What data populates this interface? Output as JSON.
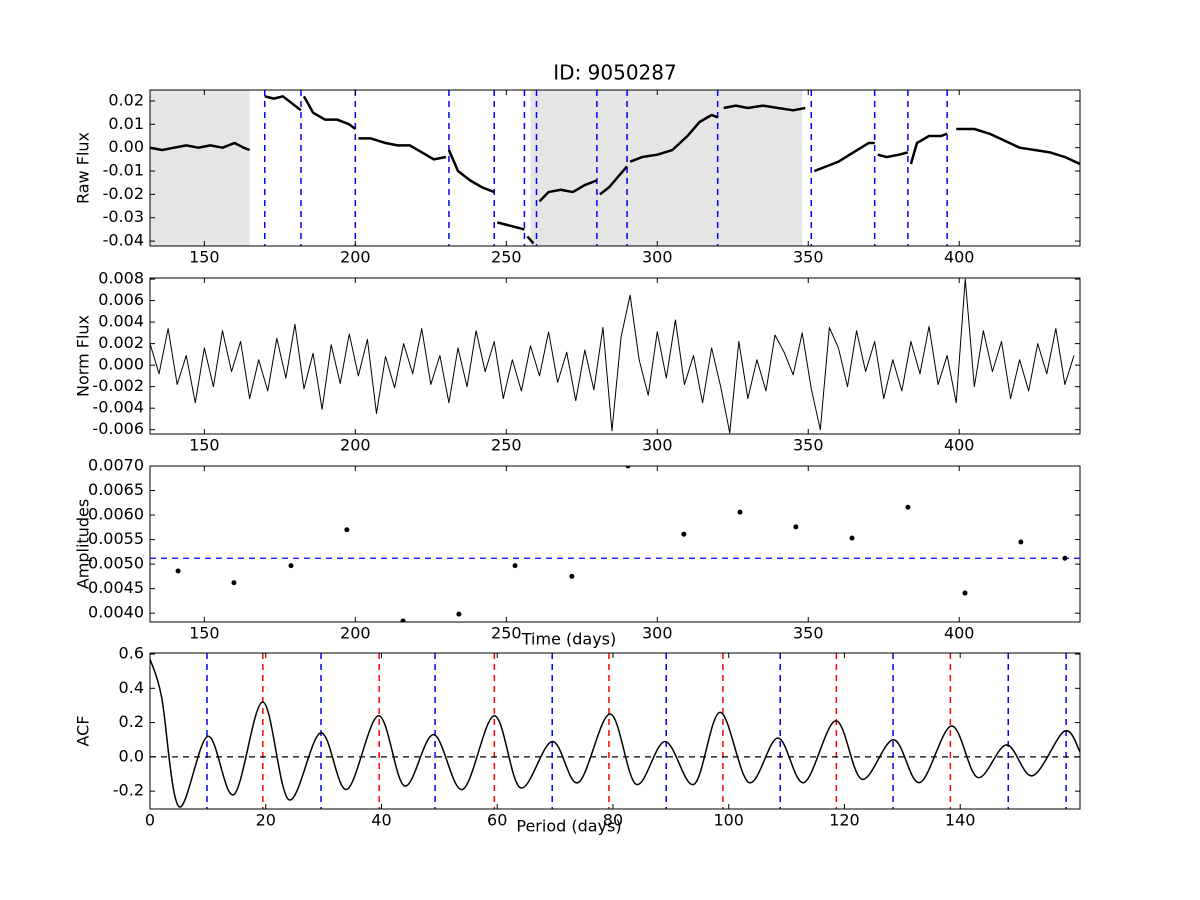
{
  "chart_data": [
    {
      "type": "line",
      "title": "ID: 9050287",
      "ylabel": "Raw Flux",
      "xlim": [
        132,
        440
      ],
      "ylim": [
        -0.0421,
        0.0247
      ],
      "xticks": [
        150,
        200,
        250,
        300,
        350,
        400
      ],
      "yticks": [
        -0.04,
        -0.03,
        -0.02,
        -0.01,
        {
          "value": 0,
          "label": "0.00"
        },
        0.01,
        0.02
      ],
      "shaded": {
        "color": "#e5e5e5",
        "ranges": [
          [
            132,
            165
          ],
          [
            258,
            348
          ]
        ]
      },
      "vlines": [
        {
          "color": "#0000ff",
          "x": [
            170,
            182,
            200,
            231,
            246,
            256,
            260,
            280,
            290,
            320,
            351,
            372,
            383,
            396
          ]
        }
      ],
      "line_width": 2.5,
      "series": [
        {
          "color": "#000000",
          "x": [
            132,
            136,
            140,
            144,
            148,
            152,
            156,
            160,
            163,
            165,
            null,
            170,
            173,
            176,
            179,
            182,
            null,
            183,
            186,
            190,
            194,
            198,
            200,
            null,
            201,
            205,
            210,
            214,
            218,
            222,
            226,
            230,
            null,
            231,
            234,
            238,
            242,
            246,
            null,
            247,
            250,
            253,
            256,
            null,
            257,
            259,
            null,
            261,
            264,
            268,
            272,
            276,
            280,
            null,
            281,
            284,
            288,
            290,
            null,
            291,
            295,
            300,
            305,
            310,
            314,
            318,
            320,
            null,
            322,
            326,
            330,
            335,
            340,
            345,
            349,
            null,
            352,
            356,
            360,
            365,
            370,
            372,
            null,
            373,
            376,
            380,
            383,
            null,
            384,
            386,
            390,
            394,
            396,
            null,
            399,
            405,
            410,
            415,
            420,
            425,
            430,
            435,
            440
          ],
          "values": [
            0.0,
            -0.001,
            0.0,
            0.001,
            0.0,
            0.001,
            0.0,
            0.002,
            0.0,
            -0.001,
            null,
            0.022,
            0.021,
            0.022,
            0.019,
            0.016,
            null,
            0.022,
            0.015,
            0.012,
            0.012,
            0.01,
            0.008,
            null,
            0.004,
            0.004,
            0.002,
            0.001,
            0.001,
            -0.002,
            -0.005,
            -0.004,
            null,
            -0.001,
            -0.01,
            -0.014,
            -0.017,
            -0.019,
            null,
            -0.032,
            -0.033,
            -0.034,
            -0.035,
            null,
            -0.038,
            -0.041,
            null,
            -0.023,
            -0.019,
            -0.018,
            -0.019,
            -0.016,
            -0.014,
            null,
            -0.02,
            -0.017,
            -0.011,
            -0.008,
            null,
            -0.006,
            -0.004,
            -0.003,
            -0.001,
            0.005,
            0.011,
            0.014,
            0.013,
            null,
            0.017,
            0.018,
            0.017,
            0.018,
            0.017,
            0.016,
            0.017,
            null,
            -0.01,
            -0.008,
            -0.006,
            -0.002,
            0.002,
            0.002,
            null,
            -0.003,
            -0.004,
            -0.003,
            -0.002,
            null,
            -0.007,
            0.002,
            0.005,
            0.005,
            0.006,
            null,
            0.008,
            0.008,
            0.006,
            0.003,
            0.0,
            -0.001,
            -0.002,
            -0.004,
            -0.007
          ]
        }
      ]
    },
    {
      "type": "line",
      "ylabel": "Norm Flux",
      "xlim": [
        132,
        440
      ],
      "ylim": [
        -0.0064,
        0.0081
      ],
      "xticks": [
        150,
        200,
        250,
        300,
        350,
        400
      ],
      "yticks": [
        -0.006,
        -0.004,
        -0.002,
        {
          "value": 0,
          "label": "0.000"
        },
        0.002,
        0.004,
        0.006,
        0.008
      ],
      "line_width": 1,
      "series": [
        {
          "color": "#000000",
          "x": [
            132,
            135,
            138,
            141,
            144,
            147,
            150,
            153,
            156,
            159,
            162,
            165,
            168,
            171,
            174,
            177,
            180,
            183,
            186,
            189,
            192,
            195,
            198,
            201,
            204,
            207,
            210,
            213,
            216,
            219,
            222,
            225,
            228,
            231,
            234,
            237,
            240,
            243,
            246,
            249,
            252,
            255,
            258,
            261,
            264,
            267,
            270,
            273,
            276,
            279,
            282,
            285,
            288,
            291,
            294,
            297,
            300,
            303,
            306,
            309,
            312,
            315,
            318,
            321,
            324,
            327,
            330,
            333,
            336,
            339,
            342,
            345,
            348,
            351,
            354,
            357,
            360,
            363,
            366,
            369,
            372,
            375,
            378,
            381,
            384,
            387,
            390,
            393,
            396,
            399,
            402,
            405,
            408,
            411,
            414,
            417,
            420,
            423,
            426,
            429,
            432,
            435,
            438
          ],
          "values": [
            0.002,
            -0.0008,
            0.0034,
            -0.0018,
            0.0009,
            -0.0035,
            0.0016,
            -0.002,
            0.0032,
            -0.0006,
            0.0022,
            -0.0031,
            0.0005,
            -0.0024,
            0.0025,
            -0.0012,
            0.0038,
            -0.0022,
            0.0011,
            -0.0041,
            0.0019,
            -0.0017,
            0.0029,
            -0.001,
            0.0024,
            -0.0045,
            0.0008,
            -0.0021,
            0.002,
            -0.0008,
            0.0034,
            -0.0018,
            0.0009,
            -0.0035,
            0.0016,
            -0.002,
            0.0032,
            -0.0006,
            0.0022,
            -0.0031,
            0.0005,
            -0.0024,
            0.0018,
            -0.001,
            0.0031,
            -0.0016,
            0.0012,
            -0.0033,
            0.0014,
            -0.0023,
            0.0035,
            -0.0061,
            0.0026,
            0.0065,
            0.0005,
            -0.0028,
            0.0031,
            -0.0012,
            0.0042,
            -0.0018,
            0.0009,
            -0.0035,
            0.0016,
            -0.002,
            -0.0063,
            0.0022,
            -0.0031,
            0.0005,
            -0.0024,
            0.0028,
            0.0012,
            -0.0009,
            0.003,
            -0.0022,
            -0.006,
            0.0035,
            0.0016,
            -0.002,
            0.0032,
            -0.0006,
            0.0022,
            -0.0031,
            0.0005,
            -0.0024,
            0.0022,
            -0.0008,
            0.0036,
            -0.0018,
            0.0009,
            -0.0035,
            0.008,
            -0.002,
            0.0032,
            -0.0006,
            0.0022,
            -0.0031,
            0.0005,
            -0.0024,
            0.002,
            -0.0008,
            0.0034,
            -0.0018,
            0.0009
          ]
        }
      ]
    },
    {
      "type": "scatter",
      "ylabel": "Amplitudes",
      "xlabel": "Time (days)",
      "xlim": [
        132,
        440
      ],
      "ylim": [
        0.00382,
        0.007
      ],
      "xticks": [
        150,
        200,
        250,
        300,
        350,
        400
      ],
      "yticks": [
        {
          "value": 0.004,
          "label": "0.0040"
        },
        0.0045,
        {
          "value": 0.005,
          "label": "0.0050"
        },
        0.0055,
        {
          "value": 0.006,
          "label": "0.0060"
        },
        0.0065,
        {
          "value": 0.007,
          "label": "0.0070"
        }
      ],
      "hline": {
        "color": "#0000ff",
        "value": 0.00512
      },
      "series": [
        {
          "color": "#000000",
          "x": [
            141.3,
            159.8,
            178.7,
            197.2,
            215.8,
            234.3,
            252.9,
            271.7,
            290.3,
            308.8,
            327.4,
            345.9,
            364.5,
            383,
            401.9,
            420.4,
            435
          ],
          "values": [
            0.00486,
            0.00462,
            0.00497,
            0.0057,
            0.00384,
            0.00398,
            0.00497,
            0.00475,
            0.007,
            0.00561,
            0.00606,
            0.00576,
            0.00553,
            0.00616,
            0.00441,
            0.00545,
            0.00512
          ]
        }
      ]
    },
    {
      "type": "line",
      "ylabel": "ACF",
      "xlabel": "Period (days)",
      "xlim": [
        0,
        160.7
      ],
      "ylim": [
        -0.304,
        0.606
      ],
      "xticks": [
        0,
        20,
        40,
        60,
        80,
        100,
        120,
        140
      ],
      "yticks": [
        -0.2,
        {
          "value": 0,
          "label": "0.0"
        },
        0.2,
        0.4,
        0.6
      ],
      "hline": {
        "color": "#000000",
        "value": 0
      },
      "vlines": [
        {
          "color": "#0000ff",
          "x": [
            9.85,
            29.55,
            49.26,
            69.5,
            89.2,
            108.9,
            128.4,
            148.3,
            158.3
          ]
        },
        {
          "color": "#ff0000",
          "x": [
            19.5,
            39.6,
            59.5,
            79.3,
            99.0,
            118.6,
            138.3
          ]
        }
      ],
      "smooth": true,
      "line_width": 1.5,
      "series": [
        {
          "color": "#000000",
          "x": [
            0,
            2,
            5,
            10,
            14.5,
            19.5,
            24,
            29.5,
            34,
            39.5,
            44,
            49,
            54,
            59.5,
            64,
            69.5,
            74,
            79.5,
            84,
            89,
            94,
            98.5,
            103.5,
            108.5,
            113,
            118.5,
            123,
            128.5,
            133,
            138.5,
            143,
            148,
            152.5,
            158,
            160.7
          ],
          "values": [
            0.57,
            0.35,
            -0.29,
            0.12,
            -0.22,
            0.32,
            -0.25,
            0.14,
            -0.19,
            0.24,
            -0.17,
            0.13,
            -0.19,
            0.24,
            -0.18,
            0.09,
            -0.15,
            0.25,
            -0.16,
            0.09,
            -0.16,
            0.26,
            -0.15,
            0.11,
            -0.15,
            0.21,
            -0.13,
            0.1,
            -0.15,
            0.18,
            -0.12,
            0.07,
            -0.11,
            0.15,
            0.03
          ]
        }
      ]
    }
  ]
}
